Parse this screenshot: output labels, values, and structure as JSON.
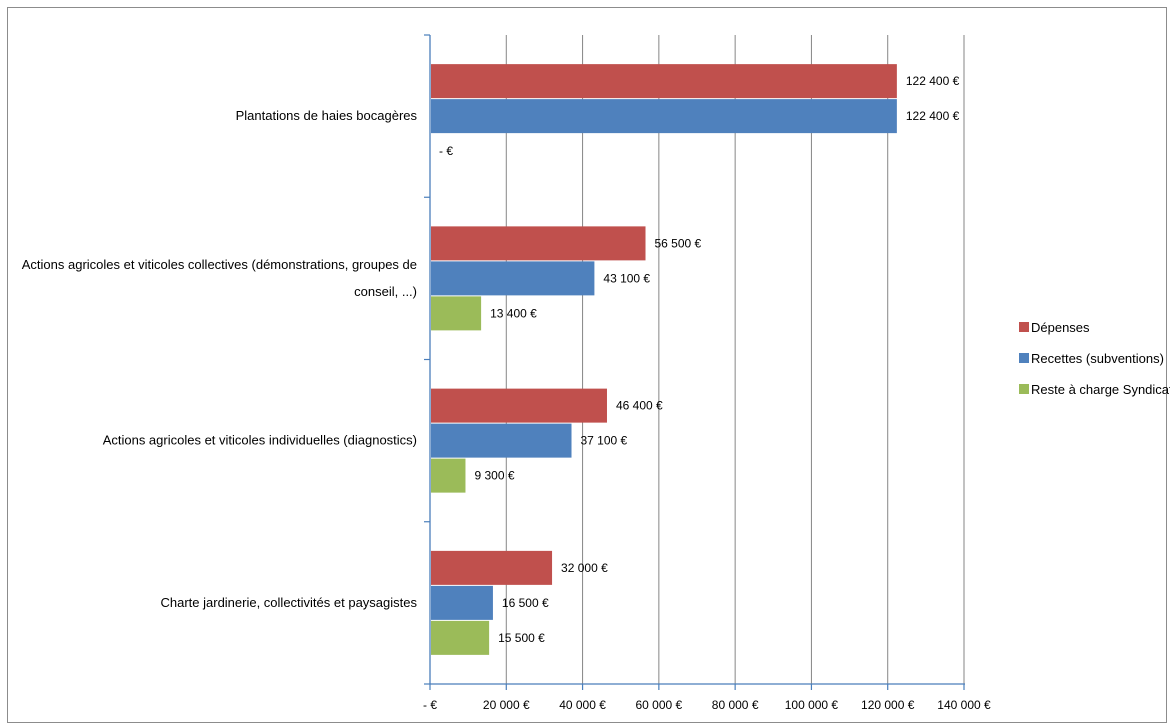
{
  "chart_data": {
    "type": "bar",
    "orientation": "horizontal",
    "categories": [
      "Plantations de haies bocagères",
      "Actions agricoles et viticoles collectives (démonstrations,  groupes de conseil, ...)",
      "Actions agricoles et viticoles individuelles (diagnostics)",
      "Charte jardinerie, collectivités et paysagistes"
    ],
    "category_lines": [
      [
        "Plantations de haies bocagères"
      ],
      [
        "Actions agricoles et viticoles collectives (démonstrations,  groupes de",
        "conseil, ...)"
      ],
      [
        "Actions agricoles et viticoles individuelles (diagnostics)"
      ],
      [
        "Charte jardinerie, collectivités et paysagistes"
      ]
    ],
    "series": [
      {
        "name": "Dépenses",
        "color": "#c0504d",
        "values": [
          122400,
          56500,
          46400,
          32000
        ],
        "labels": [
          "122 400 €",
          "56 500 €",
          "46 400 €",
          "32 000 €"
        ]
      },
      {
        "name": "Recettes (subventions)",
        "color": "#4f81bd",
        "values": [
          122400,
          43100,
          37100,
          16500
        ],
        "labels": [
          "122 400 €",
          "43 100 €",
          "37 100 €",
          "16 500 €"
        ]
      },
      {
        "name": "Reste à charge Syndicat",
        "color": "#9bbb59",
        "values": [
          0,
          13400,
          9300,
          15500
        ],
        "labels": [
          "- €",
          "13 400 €",
          "9 300 €",
          "15 500 €"
        ]
      }
    ],
    "xlim": [
      0,
      140000
    ],
    "x_ticks": [
      0,
      20000,
      40000,
      60000,
      80000,
      100000,
      120000,
      140000
    ],
    "x_tick_labels": [
      "- €",
      "20 000 €",
      "40 000 €",
      "60 000 €",
      "80 000 €",
      "100 000 €",
      "120 000 €",
      "140 000 €"
    ],
    "grid": true,
    "legend_position": "right"
  }
}
